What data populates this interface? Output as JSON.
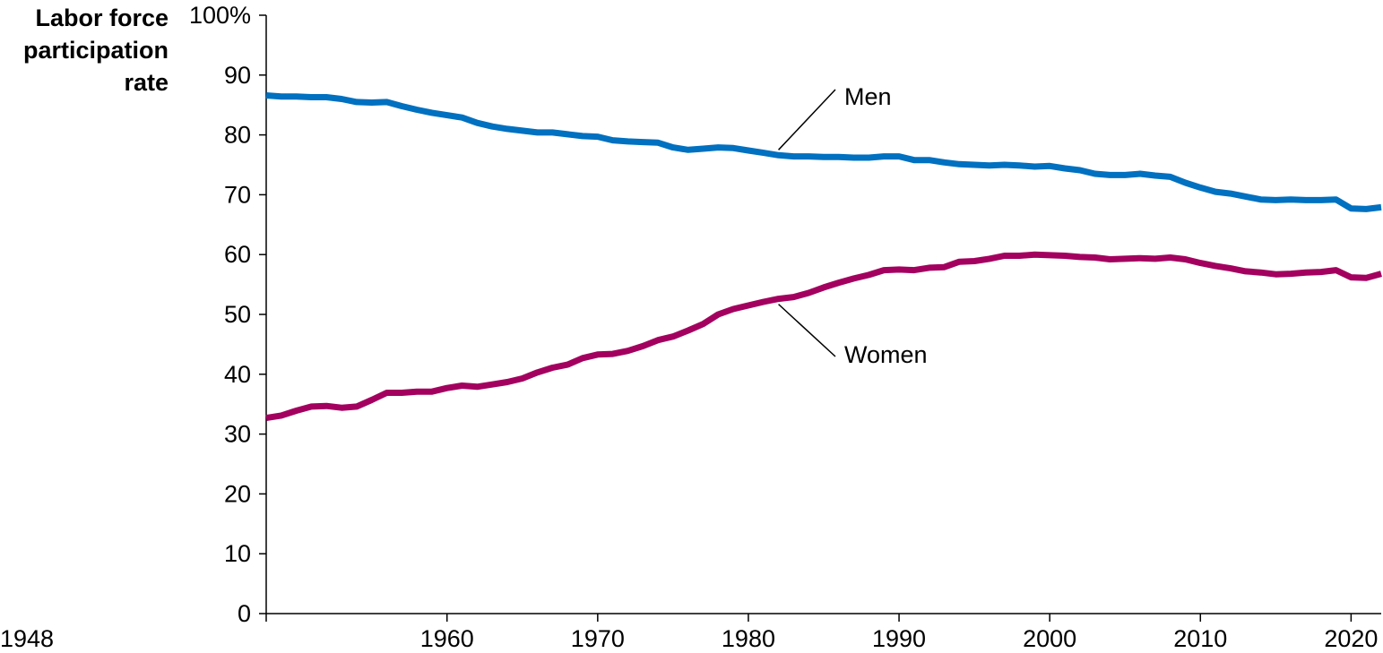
{
  "chart_data": {
    "type": "line",
    "ylabel_lines": [
      "Labor force",
      "participation",
      "rate"
    ],
    "ylim": [
      0,
      100
    ],
    "yticks": [
      0,
      10,
      20,
      30,
      40,
      50,
      60,
      70,
      80,
      90,
      100
    ],
    "ytick_labels": [
      "0",
      "10",
      "20",
      "30",
      "40",
      "50",
      "60",
      "70",
      "80",
      "90",
      "100%"
    ],
    "xlim": [
      1948,
      2022
    ],
    "xticks": [
      1948,
      1960,
      1970,
      1980,
      1990,
      2000,
      2010,
      2020
    ],
    "xtick_labels": [
      "1948",
      "1960",
      "1970",
      "1980",
      "1990",
      "2000",
      "2010",
      "2020"
    ],
    "grid": false,
    "legend": "inline labels",
    "series": [
      {
        "name": "Men",
        "color": "#0070c0",
        "x": [
          1948,
          1949,
          1950,
          1951,
          1952,
          1953,
          1954,
          1955,
          1956,
          1957,
          1958,
          1959,
          1960,
          1961,
          1962,
          1963,
          1964,
          1965,
          1966,
          1967,
          1968,
          1969,
          1970,
          1971,
          1972,
          1973,
          1974,
          1975,
          1976,
          1977,
          1978,
          1979,
          1980,
          1981,
          1982,
          1983,
          1984,
          1985,
          1986,
          1987,
          1988,
          1989,
          1990,
          1991,
          1992,
          1993,
          1994,
          1995,
          1996,
          1997,
          1998,
          1999,
          2000,
          2001,
          2002,
          2003,
          2004,
          2005,
          2006,
          2007,
          2008,
          2009,
          2010,
          2011,
          2012,
          2013,
          2014,
          2015,
          2016,
          2017,
          2018,
          2019,
          2020,
          2021,
          2022
        ],
        "values": [
          86.6,
          86.4,
          86.4,
          86.3,
          86.3,
          86.0,
          85.5,
          85.4,
          85.5,
          84.8,
          84.2,
          83.7,
          83.3,
          82.9,
          82.0,
          81.4,
          81.0,
          80.7,
          80.4,
          80.4,
          80.1,
          79.8,
          79.7,
          79.1,
          78.9,
          78.8,
          78.7,
          77.9,
          77.5,
          77.7,
          77.9,
          77.8,
          77.4,
          77.0,
          76.6,
          76.4,
          76.4,
          76.3,
          76.3,
          76.2,
          76.2,
          76.4,
          76.4,
          75.8,
          75.8,
          75.4,
          75.1,
          75.0,
          74.9,
          75.0,
          74.9,
          74.7,
          74.8,
          74.4,
          74.1,
          73.5,
          73.3,
          73.3,
          73.5,
          73.2,
          73.0,
          72.0,
          71.2,
          70.5,
          70.2,
          69.7,
          69.2,
          69.1,
          69.2,
          69.1,
          69.1,
          69.2,
          67.7,
          67.6,
          67.9
        ]
      },
      {
        "name": "Women",
        "color": "#a3005f",
        "x": [
          1948,
          1949,
          1950,
          1951,
          1952,
          1953,
          1954,
          1955,
          1956,
          1957,
          1958,
          1959,
          1960,
          1961,
          1962,
          1963,
          1964,
          1965,
          1966,
          1967,
          1968,
          1969,
          1970,
          1971,
          1972,
          1973,
          1974,
          1975,
          1976,
          1977,
          1978,
          1979,
          1980,
          1981,
          1982,
          1983,
          1984,
          1985,
          1986,
          1987,
          1988,
          1989,
          1990,
          1991,
          1992,
          1993,
          1994,
          1995,
          1996,
          1997,
          1998,
          1999,
          2000,
          2001,
          2002,
          2003,
          2004,
          2005,
          2006,
          2007,
          2008,
          2009,
          2010,
          2011,
          2012,
          2013,
          2014,
          2015,
          2016,
          2017,
          2018,
          2019,
          2020,
          2021,
          2022
        ],
        "values": [
          32.7,
          33.1,
          33.9,
          34.6,
          34.7,
          34.4,
          34.6,
          35.7,
          36.9,
          36.9,
          37.1,
          37.1,
          37.7,
          38.1,
          37.9,
          38.3,
          38.7,
          39.3,
          40.3,
          41.1,
          41.6,
          42.7,
          43.3,
          43.4,
          43.9,
          44.7,
          45.7,
          46.3,
          47.3,
          48.4,
          50.0,
          50.9,
          51.5,
          52.1,
          52.6,
          52.9,
          53.6,
          54.5,
          55.3,
          56.0,
          56.6,
          57.4,
          57.5,
          57.4,
          57.8,
          57.9,
          58.8,
          58.9,
          59.3,
          59.8,
          59.8,
          60.0,
          59.9,
          59.8,
          59.6,
          59.5,
          59.2,
          59.3,
          59.4,
          59.3,
          59.5,
          59.2,
          58.6,
          58.1,
          57.7,
          57.2,
          57.0,
          56.7,
          56.8,
          57.0,
          57.1,
          57.4,
          56.2,
          56.1,
          56.8
        ]
      }
    ]
  }
}
